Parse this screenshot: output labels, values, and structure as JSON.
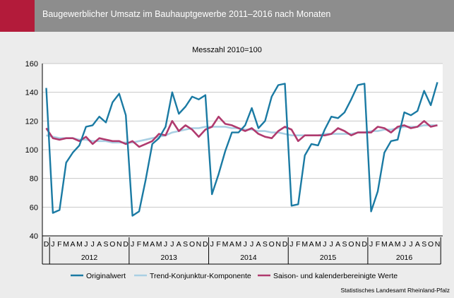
{
  "header": {
    "title": "Baugewerblicher Umsatz im Bauhauptgewerbe 2011–2016 nach Monaten"
  },
  "source": "Statistisches Landesamt Rheinland-Pfalz",
  "colors": {
    "original": "#1a7aa3",
    "trend": "#a9cfe3",
    "adjusted": "#b03a6e",
    "brand": "#b31b3a",
    "header": "#8d8d8d"
  },
  "chart_data": {
    "type": "line",
    "title": "Messzahl 2010=100",
    "ylim": [
      40,
      160
    ],
    "yticks": [
      40,
      60,
      80,
      100,
      120,
      140,
      160
    ],
    "grid": true,
    "legend_position": "bottom",
    "x_month_labels": [
      "D",
      "J",
      "F",
      "M",
      "A",
      "M",
      "J",
      "J",
      "A",
      "S",
      "O",
      "N",
      "D",
      "J",
      "F",
      "M",
      "A",
      "M",
      "J",
      "J",
      "A",
      "S",
      "O",
      "N",
      "D",
      "J",
      "F",
      "M",
      "A",
      "M",
      "J",
      "J",
      "A",
      "S",
      "O",
      "N",
      "D",
      "J",
      "F",
      "M",
      "A",
      "M",
      "J",
      "J",
      "A",
      "S",
      "O",
      "N",
      "D",
      "J",
      "F",
      "M",
      "A",
      "M",
      "J",
      "J",
      "A",
      "S",
      "O",
      "N"
    ],
    "years": [
      {
        "label": "2012",
        "start": 1,
        "end": 12
      },
      {
        "label": "2013",
        "start": 13,
        "end": 24
      },
      {
        "label": "2014",
        "start": 25,
        "end": 36
      },
      {
        "label": "2015",
        "start": 37,
        "end": 48
      },
      {
        "label": "2016",
        "start": 49,
        "end": 59
      }
    ],
    "series": [
      {
        "name": "Originalwert",
        "values": [
          143,
          56,
          58,
          91,
          98,
          103,
          116,
          117,
          123,
          119,
          133,
          139,
          124,
          54,
          57,
          79,
          104,
          108,
          116,
          140,
          125,
          130,
          137,
          135,
          138,
          69,
          83,
          99,
          112,
          112,
          117,
          129,
          115,
          120,
          137,
          145,
          146,
          61,
          62,
          96,
          104,
          103,
          114,
          123,
          122,
          126,
          135,
          145,
          146,
          57,
          71,
          98,
          106,
          107,
          126,
          124,
          127,
          141,
          131,
          147
        ]
      },
      {
        "name": "Trend-Konjunktur-Komponente",
        "values": [
          110,
          109,
          108,
          108,
          108,
          107,
          107,
          106,
          106,
          106,
          105,
          105,
          105,
          105,
          106,
          107,
          108,
          109,
          110,
          112,
          113,
          114,
          115,
          115,
          116,
          116,
          116,
          116,
          115,
          115,
          114,
          114,
          113,
          113,
          112,
          112,
          111,
          110,
          110,
          110,
          110,
          110,
          111,
          111,
          111,
          111,
          111,
          112,
          112,
          113,
          113,
          114,
          114,
          115,
          116,
          116,
          116,
          117,
          117,
          117
        ]
      },
      {
        "name": "Saison- und kalenderbereinigte Werte",
        "values": [
          115,
          108,
          107,
          108,
          108,
          106,
          109,
          104,
          108,
          107,
          106,
          106,
          104,
          106,
          102,
          104,
          106,
          111,
          110,
          120,
          113,
          117,
          114,
          109,
          114,
          116,
          123,
          118,
          117,
          115,
          113,
          115,
          111,
          109,
          108,
          113,
          116,
          114,
          106,
          110,
          110,
          110,
          110,
          111,
          115,
          113,
          110,
          112,
          112,
          112,
          116,
          115,
          112,
          116,
          117,
          115,
          116,
          120,
          116,
          117
        ]
      }
    ]
  }
}
